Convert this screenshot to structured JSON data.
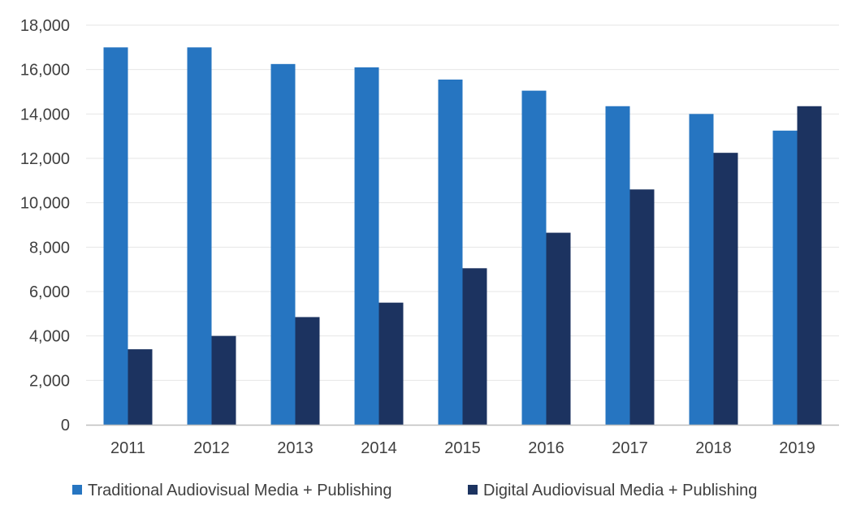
{
  "chart_data": {
    "type": "bar",
    "categories": [
      "2011",
      "2012",
      "2013",
      "2014",
      "2015",
      "2016",
      "2017",
      "2018",
      "2019"
    ],
    "series": [
      {
        "name": "Traditional Audiovisual Media + Publishing",
        "color": "#2675C1",
        "values": [
          17000,
          17000,
          16250,
          16100,
          15550,
          15050,
          14350,
          14000,
          13250
        ]
      },
      {
        "name": "Digital Audiovisual Media + Publishing",
        "color": "#1C3360",
        "values": [
          3400,
          4000,
          4850,
          5500,
          7050,
          8650,
          10600,
          12250,
          14350
        ]
      }
    ],
    "title": "",
    "xlabel": "",
    "ylabel": "",
    "ylim": [
      0,
      18000
    ],
    "yticks": [
      "0",
      "2,000",
      "4,000",
      "6,000",
      "8,000",
      "10,000",
      "12,000",
      "14,000",
      "16,000",
      "18,000"
    ],
    "grid": true,
    "legend": "bottom"
  }
}
